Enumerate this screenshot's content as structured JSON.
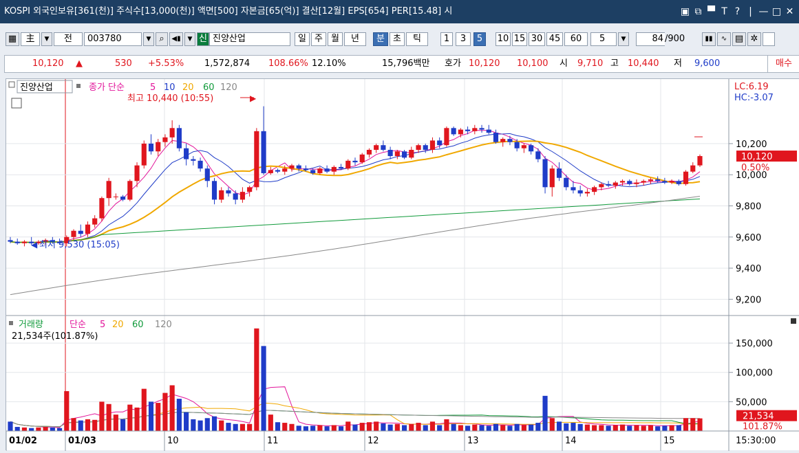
{
  "window": {
    "title": "KOSPI 외국인보유[361(천)] 주식수[13,000(천)] 액면[500] 자본금[65(억)] 결산[12월] EPS[654] PER[15.48] 시",
    "controls": [
      "▣",
      "⧉",
      "▀",
      "T",
      "?",
      "|",
      "—",
      "□",
      "✕"
    ]
  },
  "toolbar": {
    "code": "003780",
    "name": "진양산업",
    "period_tabs": [
      "일",
      "주",
      "월",
      "년",
      "분",
      "초",
      "틱"
    ],
    "active_period": "분",
    "minute_buttons": [
      "1",
      "3",
      "5",
      "10",
      "15",
      "30",
      "45",
      "60"
    ],
    "active_minute": "5",
    "interval_value": "5",
    "count": "84",
    "count_total": "/900",
    "left_buttons": [
      "主",
      "▼",
      "전"
    ],
    "sin_label": "신"
  },
  "quote": {
    "price": "10,120",
    "arrow": "▲",
    "change": "530",
    "pct": "+5.53%",
    "volume": "1,572,874",
    "vol_ratio": "108.66%",
    "turnover": "12.10%",
    "amount": "15,796백만",
    "bid_label": "호가",
    "ask": "10,120",
    "bid": "10,100",
    "open_label": "시",
    "open": "9,710",
    "high_label": "고",
    "high": "10,440",
    "low_label": "저",
    "low": "9,600",
    "buy_label": "매수"
  },
  "price_pane": {
    "legend_name": "진양산업",
    "legend_price": "종가 단순",
    "ma_labels": [
      "5",
      "10",
      "20",
      "60",
      "120"
    ],
    "ma_colors": [
      "#e2149a",
      "#1f3cc8",
      "#f0a800",
      "#109a3a",
      "#888888"
    ],
    "high_note": "최고 10,440 (10:55)",
    "low_note": "최저 9,530 (15:05)",
    "lc": "LC:6.19",
    "hc": "HC:-3.07",
    "current_price": "10,120",
    "current_pct": "0.50%",
    "y_ticks": [
      "10,200",
      "10,000",
      "9,800",
      "9,600",
      "9,400",
      "9,200"
    ]
  },
  "volume_pane": {
    "legend_name": "거래량",
    "legend_type": "단순",
    "ma_labels": [
      "5",
      "20",
      "60",
      "120"
    ],
    "current_text": "21,534주(101.87%)",
    "y_ticks": [
      "150,000",
      "100,000",
      "50,000"
    ],
    "current_value": "21,534",
    "current_pct": "101.87%"
  },
  "x_axis": {
    "labels": [
      "01/02",
      "01/03",
      "10",
      "11",
      "12",
      "13",
      "14",
      "15"
    ],
    "time": "15:30:00"
  },
  "chart_data": {
    "type": "candlestick",
    "price_range": [
      9100,
      10500
    ],
    "volume_range": [
      0,
      190000
    ],
    "candles": [
      [
        9580,
        9600,
        9560,
        9570,
        16000
      ],
      [
        9570,
        9590,
        9550,
        9560,
        7000
      ],
      [
        9560,
        9580,
        9540,
        9570,
        6000
      ],
      [
        9570,
        9600,
        9550,
        9560,
        5000
      ],
      [
        9560,
        9580,
        9550,
        9570,
        6000
      ],
      [
        9570,
        9590,
        9550,
        9580,
        7000
      ],
      [
        9580,
        9600,
        9560,
        9570,
        6000
      ],
      [
        9570,
        9590,
        9550,
        9560,
        5000
      ],
      [
        9560,
        9610,
        9540,
        9600,
        68000
      ],
      [
        9600,
        9650,
        9580,
        9640,
        22000
      ],
      [
        9640,
        9680,
        9600,
        9620,
        18000
      ],
      [
        9620,
        9700,
        9600,
        9680,
        20000
      ],
      [
        9680,
        9740,
        9660,
        9720,
        19000
      ],
      [
        9720,
        9860,
        9700,
        9850,
        50000
      ],
      [
        9850,
        9980,
        9800,
        9960,
        46000
      ],
      [
        9860,
        9880,
        9840,
        9860,
        28000
      ],
      [
        9860,
        9870,
        9830,
        9840,
        20000
      ],
      [
        9840,
        9970,
        9830,
        9960,
        45000
      ],
      [
        9960,
        10080,
        9920,
        10060,
        40000
      ],
      [
        10060,
        10220,
        10040,
        10200,
        72000
      ],
      [
        10200,
        10260,
        10130,
        10150,
        50000
      ],
      [
        10150,
        10230,
        10120,
        10210,
        48000
      ],
      [
        10210,
        10260,
        10180,
        10240,
        65000
      ],
      [
        10240,
        10350,
        10200,
        10300,
        78000
      ],
      [
        10300,
        10320,
        10150,
        10170,
        55000
      ],
      [
        10170,
        10200,
        10060,
        10100,
        32000
      ],
      [
        10100,
        10120,
        10060,
        10090,
        20000
      ],
      [
        10090,
        10110,
        10020,
        10040,
        18000
      ],
      [
        10040,
        10060,
        9920,
        9960,
        22000
      ],
      [
        9960,
        9980,
        9810,
        9840,
        25000
      ],
      [
        9840,
        9920,
        9820,
        9900,
        18000
      ],
      [
        9900,
        9920,
        9860,
        9880,
        14000
      ],
      [
        9880,
        9900,
        9810,
        9840,
        12000
      ],
      [
        9840,
        9920,
        9820,
        9890,
        12000
      ],
      [
        9890,
        9930,
        9860,
        9920,
        12000
      ],
      [
        9920,
        10300,
        9900,
        10280,
        175000
      ],
      [
        10280,
        10440,
        10000,
        10010,
        145000
      ],
      [
        10010,
        10050,
        10000,
        10030,
        28000
      ],
      [
        10030,
        10040,
        10010,
        10020,
        15000
      ],
      [
        10020,
        10060,
        10000,
        10040,
        14000
      ],
      [
        10040,
        10070,
        10020,
        10060,
        12000
      ],
      [
        10060,
        10070,
        10020,
        10040,
        9000
      ],
      [
        10040,
        10060,
        10020,
        10030,
        8000
      ],
      [
        10030,
        10040,
        10000,
        10010,
        9000
      ],
      [
        10010,
        10050,
        10000,
        10040,
        10000
      ],
      [
        10040,
        10060,
        10010,
        10020,
        8000
      ],
      [
        10020,
        10060,
        10000,
        10050,
        10000
      ],
      [
        10050,
        10070,
        10030,
        10040,
        8000
      ],
      [
        10040,
        10100,
        10030,
        10090,
        16000
      ],
      [
        10090,
        10110,
        10060,
        10080,
        11000
      ],
      [
        10080,
        10140,
        10070,
        10130,
        14000
      ],
      [
        10130,
        10170,
        10110,
        10160,
        15000
      ],
      [
        10160,
        10200,
        10140,
        10190,
        16000
      ],
      [
        10190,
        10220,
        10150,
        10160,
        13000
      ],
      [
        10160,
        10180,
        10100,
        10120,
        11000
      ],
      [
        10120,
        10160,
        10100,
        10150,
        12000
      ],
      [
        10150,
        10160,
        10100,
        10110,
        10000
      ],
      [
        10110,
        10180,
        10100,
        10160,
        12000
      ],
      [
        10160,
        10200,
        10140,
        10190,
        14000
      ],
      [
        10190,
        10200,
        10140,
        10160,
        10000
      ],
      [
        10160,
        10240,
        10140,
        10220,
        16000
      ],
      [
        10220,
        10240,
        10170,
        10190,
        10000
      ],
      [
        10190,
        10310,
        10180,
        10300,
        20000
      ],
      [
        10300,
        10310,
        10250,
        10260,
        12000
      ],
      [
        10260,
        10300,
        10240,
        10290,
        10000
      ],
      [
        10290,
        10310,
        10260,
        10280,
        9000
      ],
      [
        10280,
        10320,
        10260,
        10300,
        11000
      ],
      [
        10300,
        10320,
        10270,
        10290,
        10000
      ],
      [
        10290,
        10320,
        10260,
        10270,
        9000
      ],
      [
        10270,
        10290,
        10200,
        10210,
        12000
      ],
      [
        10210,
        10240,
        10180,
        10230,
        10000
      ],
      [
        10230,
        10250,
        10190,
        10210,
        9000
      ],
      [
        10210,
        10230,
        10150,
        10170,
        12000
      ],
      [
        10170,
        10200,
        10140,
        10190,
        10000
      ],
      [
        10190,
        10200,
        10130,
        10150,
        11000
      ],
      [
        10150,
        10170,
        10080,
        10100,
        14000
      ],
      [
        10100,
        10120,
        9880,
        9920,
        60000
      ],
      [
        9920,
        10060,
        9860,
        10040,
        22000
      ],
      [
        10040,
        10080,
        9960,
        9980,
        16000
      ],
      [
        9980,
        10000,
        9900,
        9920,
        13000
      ],
      [
        9920,
        9960,
        9880,
        9900,
        14000
      ],
      [
        9900,
        9930,
        9860,
        9880,
        12000
      ],
      [
        9880,
        9910,
        9860,
        9890,
        11000
      ],
      [
        9890,
        9930,
        9870,
        9920,
        10000
      ],
      [
        9920,
        9950,
        9900,
        9940,
        10000
      ],
      [
        9940,
        9960,
        9920,
        9930,
        9000
      ],
      [
        9930,
        9960,
        9910,
        9950,
        10000
      ],
      [
        9950,
        9970,
        9930,
        9960,
        11000
      ],
      [
        9960,
        9970,
        9930,
        9940,
        9000
      ],
      [
        9940,
        9970,
        9920,
        9950,
        10000
      ],
      [
        9950,
        9970,
        9930,
        9960,
        9000
      ],
      [
        9960,
        9980,
        9940,
        9970,
        10000
      ],
      [
        9970,
        9990,
        9950,
        9960,
        8000
      ],
      [
        9960,
        9980,
        9940,
        9950,
        9000
      ],
      [
        9950,
        9970,
        9940,
        9960,
        10000
      ],
      [
        9960,
        9970,
        9930,
        9940,
        10000
      ],
      [
        9940,
        10030,
        9930,
        10020,
        22000
      ],
      [
        10020,
        10080,
        10010,
        10060,
        22000
      ],
      [
        10060,
        10130,
        10050,
        10120,
        21534
      ]
    ]
  }
}
